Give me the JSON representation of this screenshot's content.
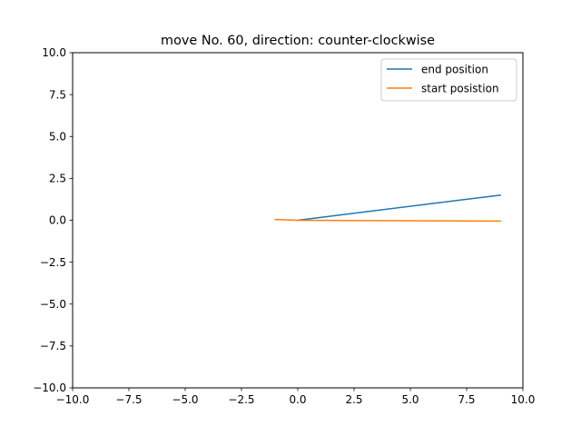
{
  "chart_data": {
    "type": "line",
    "title": "move No. 60, direction: counter-clockwise",
    "xlabel": "",
    "ylabel": "",
    "xlim": [
      -10,
      10
    ],
    "ylim": [
      -10,
      10
    ],
    "xticks": [
      -10,
      -7.5,
      -5,
      -2.5,
      0,
      2.5,
      5,
      7.5,
      10
    ],
    "yticks": [
      -10,
      -7.5,
      -5,
      -2.5,
      0,
      2.5,
      5,
      7.5,
      10
    ],
    "xtick_labels": [
      "−10.0",
      "−7.5",
      "−5.0",
      "−2.5",
      "0.0",
      "2.5",
      "5.0",
      "7.5",
      "10.0"
    ],
    "ytick_labels": [
      "−10.0",
      "−7.5",
      "−5.0",
      "−2.5",
      "0.0",
      "2.5",
      "5.0",
      "7.5",
      "10.0"
    ],
    "grid": false,
    "legend_position": "top-right",
    "series": [
      {
        "name": "end position",
        "color": "#1f77b4",
        "x": [
          0,
          9.0
        ],
        "y": [
          0,
          1.5
        ]
      },
      {
        "name": "start posistion",
        "color": "#ff7f0e",
        "x": [
          -1.0,
          0,
          9.0
        ],
        "y": [
          0.05,
          0,
          -0.05
        ]
      }
    ]
  }
}
